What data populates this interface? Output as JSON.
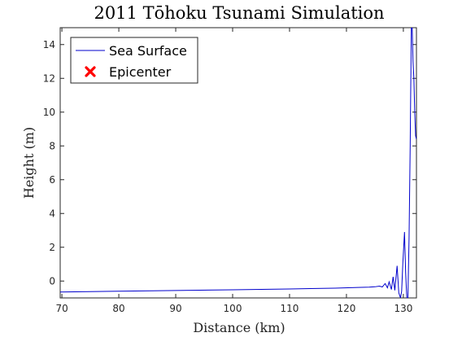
{
  "chart_data": {
    "type": "line",
    "title": "2011 Tōhoku Tsunami Simulation",
    "xlabel": "Distance (km)",
    "ylabel": "Height (m)",
    "xlim": [
      69.7,
      132.3
    ],
    "ylim": [
      -1,
      15
    ],
    "xticks": [
      70,
      80,
      90,
      100,
      110,
      120,
      130
    ],
    "yticks": [
      0,
      2,
      4,
      6,
      8,
      10,
      12,
      14
    ],
    "grid": false,
    "legend_position": "top-left",
    "colors": {
      "sea_surface": "#0000cc",
      "epicenter": "#ff0000",
      "axes": "#262626"
    },
    "series": [
      {
        "name": "Sea Surface",
        "marker": "line",
        "x": [
          69.7,
          80,
          90,
          100,
          110,
          118,
          122,
          124,
          125,
          125.8,
          126.3,
          126.8,
          127.2,
          127.5,
          127.9,
          128.2,
          128.5,
          128.9,
          129.2,
          129.5,
          129.7,
          129.9,
          130.2,
          130.4,
          130.6,
          130.8,
          131.0,
          131.2,
          131.4,
          131.55,
          131.7,
          131.85,
          132.0,
          132.15,
          132.3
        ],
        "y": [
          -0.65,
          -0.6,
          -0.56,
          -0.52,
          -0.47,
          -0.42,
          -0.38,
          -0.36,
          -0.34,
          -0.3,
          -0.35,
          -0.15,
          -0.4,
          -0.05,
          -0.5,
          0.25,
          -0.55,
          0.9,
          -0.7,
          -1.0,
          -0.6,
          1.0,
          2.9,
          0.5,
          -1.0,
          -1.0,
          2.5,
          8.0,
          15.0,
          15.0,
          13.0,
          12.0,
          10.0,
          8.6,
          8.4
        ]
      },
      {
        "name": "Epicenter",
        "marker": "x",
        "x": [],
        "y": []
      }
    ]
  }
}
